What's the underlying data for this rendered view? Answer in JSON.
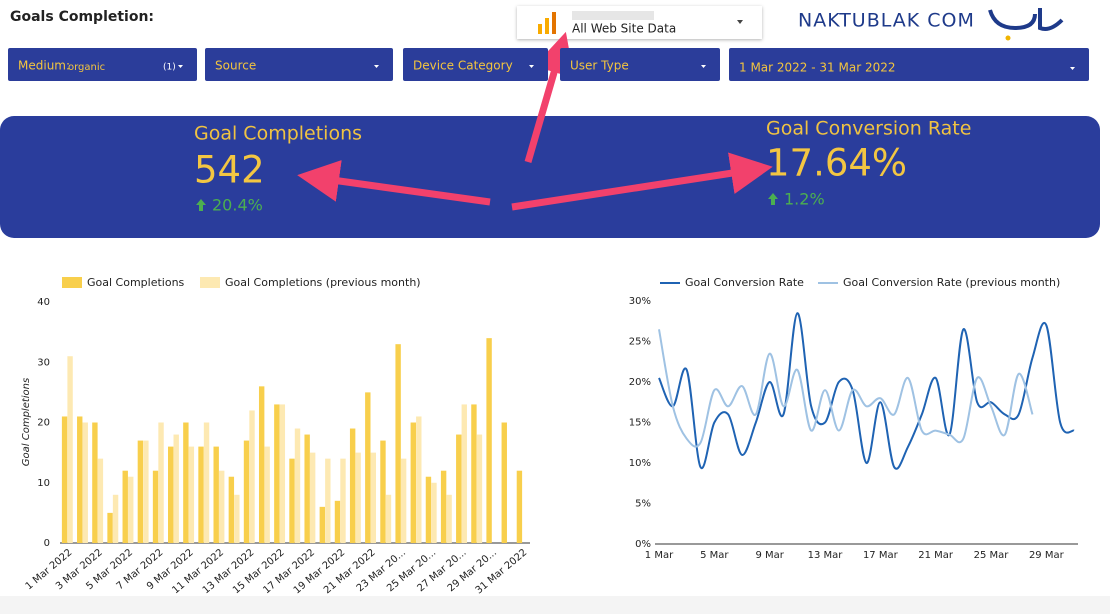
{
  "header": {
    "title": "Goals Completion:",
    "view": "All Web Site Data",
    "logo": "NAKTUBLAK COM"
  },
  "filters": [
    {
      "label": "Medium:",
      "value": "organic",
      "count": "(1)"
    },
    {
      "label": "Source"
    },
    {
      "label": "Device Category"
    },
    {
      "label": "User Type"
    },
    {
      "label": "1 Mar 2022 - 31 Mar 2022"
    }
  ],
  "scorecards": [
    {
      "title": "Goal Completions",
      "value": "542",
      "change": "20.4%"
    },
    {
      "title": "Goal Conversion Rate",
      "value": "17.64%",
      "change": "1.2%"
    }
  ],
  "chart_data": [
    {
      "type": "bar",
      "y_label": "Goal Completions",
      "categories": [
        "1 Mar 2022",
        null,
        "3 Mar 2022",
        null,
        "5 Mar 2022",
        null,
        "7 Mar 2022",
        null,
        "9 Mar 2022",
        null,
        "11 Mar 2022",
        null,
        "13 Mar 2022",
        null,
        "15 Mar 2022",
        null,
        "17 Mar 2022",
        null,
        "19 Mar 2022",
        null,
        "21 Mar 2022",
        null,
        "23 Mar 20...",
        null,
        "25 Mar 20...",
        null,
        "27 Mar 20...",
        null,
        "29 Mar 20...",
        null,
        "31 Mar 2022"
      ],
      "series": [
        {
          "name": "Goal Completions",
          "color": "#f8cf4c",
          "values": [
            21,
            21,
            20,
            5,
            12,
            17,
            12,
            16,
            20,
            16,
            16,
            11,
            17,
            26,
            23,
            14,
            18,
            6,
            7,
            19,
            25,
            17,
            33,
            20,
            11,
            12,
            18,
            23,
            34,
            20,
            12
          ]
        },
        {
          "name": "Goal Completions (previous month)",
          "color": "#fde9b2",
          "values": [
            31,
            20,
            14,
            8,
            11,
            17,
            20,
            18,
            16,
            20,
            12,
            8,
            22,
            16,
            23,
            19,
            15,
            14,
            14,
            15,
            15,
            8,
            14,
            21,
            10,
            8,
            23,
            18,
            null,
            null,
            null
          ]
        }
      ],
      "ylim": [
        0,
        40
      ],
      "yticks": [
        0,
        10,
        20,
        30,
        40
      ],
      "grid": false
    },
    {
      "type": "line",
      "categories": [
        "1 Mar",
        null,
        null,
        null,
        "5 Mar",
        null,
        null,
        null,
        "9 Mar",
        null,
        null,
        null,
        "13 Mar",
        null,
        null,
        null,
        "17 Mar",
        null,
        null,
        null,
        "21 Mar",
        null,
        null,
        null,
        "25 Mar",
        null,
        null,
        null,
        "29 Mar",
        null,
        null
      ],
      "series": [
        {
          "name": "Goal Conversion Rate",
          "color": "#1f63b3",
          "values": [
            20.5,
            17,
            21.5,
            9.5,
            15,
            16,
            11,
            15,
            20,
            16,
            28.5,
            17,
            15,
            20,
            19,
            10,
            17.5,
            9.5,
            12,
            16,
            20.5,
            13.5,
            26.5,
            17.5,
            17.5,
            16,
            16,
            23,
            27,
            15,
            14
          ]
        },
        {
          "name": "Goal Conversion Rate (previous month)",
          "color": "#9fc2e3",
          "values": [
            26.5,
            17,
            13,
            12.5,
            19,
            17,
            19.5,
            16,
            23.5,
            17,
            21.5,
            14,
            19,
            14,
            19,
            17,
            18,
            16,
            20.5,
            14,
            14,
            13.5,
            13,
            20.5,
            17,
            13.5,
            21,
            16,
            null,
            null,
            null
          ]
        }
      ],
      "ylim": [
        0,
        30
      ],
      "yticks": [
        {
          "value": 0,
          "label": "0%"
        },
        {
          "value": 5,
          "label": "5%"
        },
        {
          "value": 10,
          "label": "10%"
        },
        {
          "value": 15,
          "label": "15%"
        },
        {
          "value": 20,
          "label": "20%"
        },
        {
          "value": 25,
          "label": "25%"
        },
        {
          "value": 30,
          "label": "30%"
        }
      ],
      "grid": false
    }
  ]
}
